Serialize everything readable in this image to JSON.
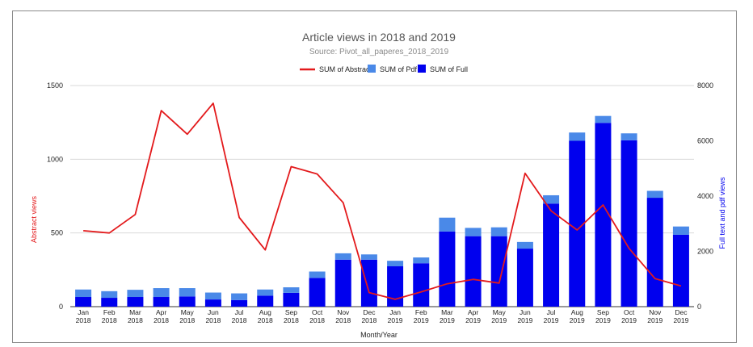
{
  "chart_data": {
    "type": "bar",
    "title": "Article views in 2018 and 2019",
    "subtitle": "Source: Pivot_all_paperes_2018_2019",
    "xlabel": "Month/Year",
    "ylabel_left": "Abstract views",
    "ylabel_right": "Full text and pdf views",
    "ylim_left": [
      0,
      1500
    ],
    "ylim_right": [
      0,
      8000
    ],
    "yticks_left": [
      "0",
      "500",
      "1000",
      "1500"
    ],
    "yticks_right": [
      "0",
      "2000",
      "4000",
      "6000",
      "8000"
    ],
    "grid": true,
    "legend_position": "top",
    "categories": [
      [
        "Jan",
        "2018"
      ],
      [
        "Feb",
        "2018"
      ],
      [
        "Mar",
        "2018"
      ],
      [
        "Apr",
        "2018"
      ],
      [
        "May",
        "2018"
      ],
      [
        "Jun",
        "2018"
      ],
      [
        "Jul",
        "2018"
      ],
      [
        "Aug",
        "2018"
      ],
      [
        "Sep",
        "2018"
      ],
      [
        "Oct",
        "2018"
      ],
      [
        "Nov",
        "2018"
      ],
      [
        "Dec",
        "2018"
      ],
      [
        "Jan",
        "2019"
      ],
      [
        "Feb",
        "2019"
      ],
      [
        "Mar",
        "2019"
      ],
      [
        "Apr",
        "2019"
      ],
      [
        "May",
        "2019"
      ],
      [
        "Jun",
        "2019"
      ],
      [
        "Jul",
        "2019"
      ],
      [
        "Aug",
        "2019"
      ],
      [
        "Sep",
        "2019"
      ],
      [
        "Oct",
        "2019"
      ],
      [
        "Nov",
        "2019"
      ],
      [
        "Dec",
        "2019"
      ]
    ],
    "series": [
      {
        "name": "SUM of Abstract",
        "type": "line",
        "axis": "left",
        "color": "#e31a1c",
        "values": [
          515,
          500,
          625,
          1330,
          1170,
          1380,
          605,
          385,
          950,
          900,
          705,
          95,
          50,
          100,
          155,
          185,
          160,
          905,
          650,
          520,
          690,
          395,
          190,
          140
        ]
      },
      {
        "name": "SUM of Pdf",
        "type": "bar",
        "axis": "right",
        "stack": "views",
        "color": "#4a89e8",
        "values": [
          270,
          240,
          260,
          320,
          300,
          250,
          240,
          220,
          200,
          230,
          230,
          190,
          200,
          210,
          500,
          300,
          320,
          240,
          300,
          300,
          250,
          250,
          250,
          300
        ]
      },
      {
        "name": "SUM of Full",
        "type": "bar",
        "axis": "right",
        "stack": "views",
        "color": "#0000ee",
        "values": [
          350,
          320,
          350,
          350,
          370,
          260,
          240,
          400,
          500,
          1040,
          1700,
          1700,
          1460,
          1570,
          2720,
          2550,
          2550,
          2100,
          3730,
          6000,
          6650,
          6020,
          3940,
          2600
        ]
      }
    ],
    "legend": [
      "SUM of Abstract",
      "SUM of Pdf",
      "SUM of Full"
    ]
  },
  "colors": {
    "abstract": "#e31a1c",
    "pdf": "#4a89e8",
    "full": "#0000ee",
    "grid": "#d9d9d9",
    "text": "#222222"
  }
}
